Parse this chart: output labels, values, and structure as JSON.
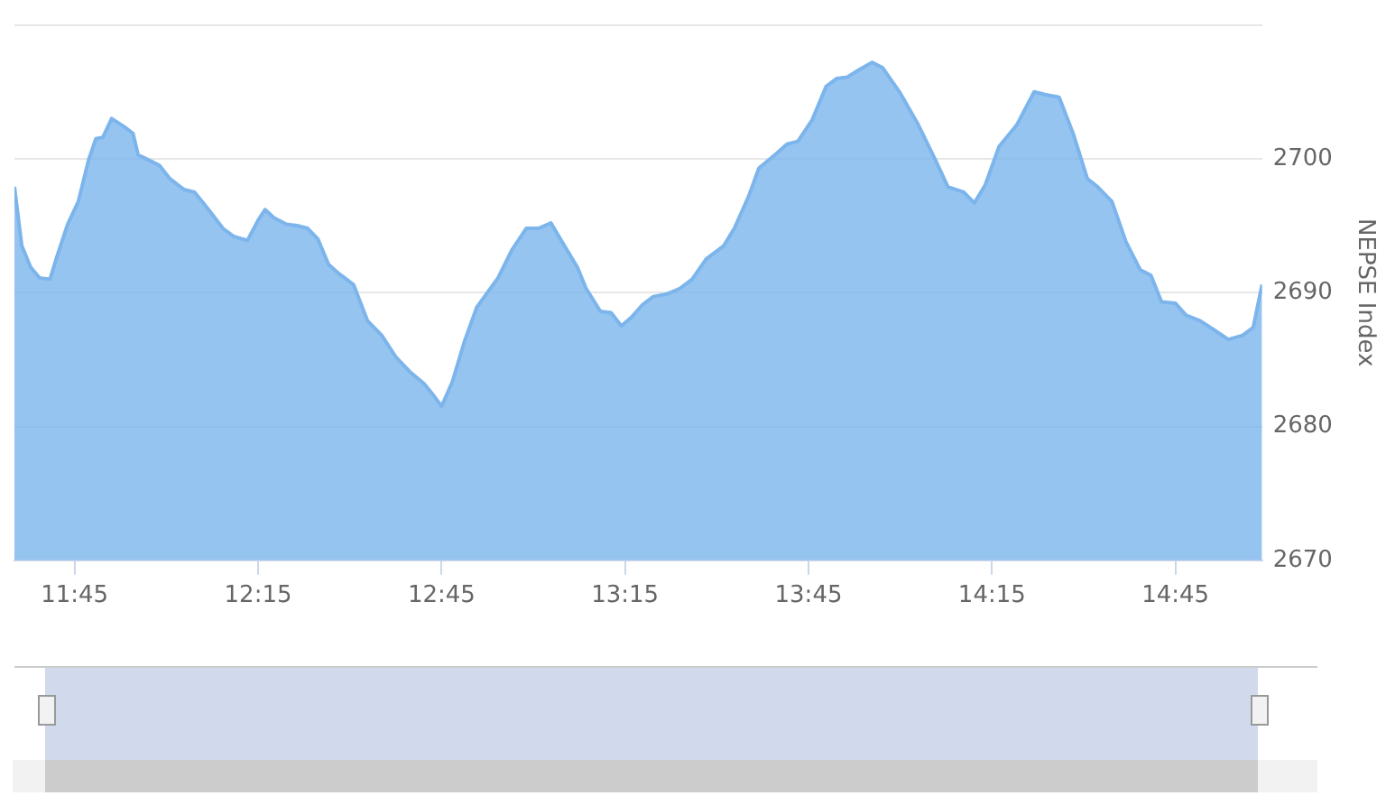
{
  "chart_data": {
    "type": "area",
    "ylabel": "NEPSE Index",
    "grid": "y",
    "legend": false,
    "marker": "none",
    "line_style": "solid",
    "xlim": [
      11.586,
      14.986
    ],
    "xticks": [
      {
        "value": 11.75,
        "label": "11:45"
      },
      {
        "value": 12.25,
        "label": "12:15"
      },
      {
        "value": 12.75,
        "label": "12:45"
      },
      {
        "value": 13.25,
        "label": "13:15"
      },
      {
        "value": 13.75,
        "label": "13:45"
      },
      {
        "value": 14.25,
        "label": "14:15"
      },
      {
        "value": 14.75,
        "label": "14:45"
      }
    ],
    "ylim": [
      2670,
      2710
    ],
    "yticks": [
      2670,
      2680,
      2690,
      2700,
      {
        "value": 2710,
        "label": null
      }
    ],
    "x": [
      11.586,
      11.606,
      11.63,
      11.654,
      11.683,
      11.702,
      11.731,
      11.76,
      11.788,
      11.808,
      11.827,
      11.851,
      11.885,
      11.909,
      11.923,
      11.952,
      11.981,
      12.01,
      12.048,
      12.077,
      12.115,
      12.154,
      12.183,
      12.221,
      12.25,
      12.269,
      12.293,
      12.327,
      12.356,
      12.385,
      12.413,
      12.442,
      12.471,
      12.51,
      12.548,
      12.587,
      12.625,
      12.663,
      12.702,
      12.726,
      12.75,
      12.779,
      12.813,
      12.846,
      12.875,
      12.904,
      12.942,
      12.981,
      13.014,
      13.048,
      13.087,
      13.12,
      13.144,
      13.183,
      13.212,
      13.24,
      13.269,
      13.298,
      13.327,
      13.365,
      13.399,
      13.433,
      13.471,
      13.519,
      13.548,
      13.587,
      13.615,
      13.663,
      13.692,
      13.721,
      13.76,
      13.798,
      13.827,
      13.856,
      13.885,
      13.923,
      13.952,
      14.0,
      14.048,
      14.096,
      14.13,
      14.173,
      14.202,
      14.231,
      14.269,
      14.317,
      14.365,
      14.394,
      14.433,
      14.471,
      14.51,
      14.538,
      14.577,
      14.615,
      14.654,
      14.683,
      14.712,
      14.75,
      14.779,
      14.817,
      14.856,
      14.894,
      14.933,
      14.962,
      14.986
    ],
    "series": [
      {
        "color": "#7cb5ec",
        "values": [
          2697.9,
          2693.5,
          2691.9,
          2691.1,
          2691.0,
          2692.7,
          2695.1,
          2696.8,
          2699.9,
          2701.5,
          2701.6,
          2703.0,
          2702.4,
          2701.9,
          2700.3,
          2699.9,
          2699.5,
          2698.5,
          2697.7,
          2697.5,
          2696.2,
          2694.8,
          2694.2,
          2693.9,
          2695.4,
          2696.2,
          2695.6,
          2695.1,
          2695.0,
          2694.8,
          2694.0,
          2692.1,
          2691.4,
          2690.6,
          2687.9,
          2686.8,
          2685.2,
          2684.1,
          2683.2,
          2682.4,
          2681.5,
          2683.3,
          2686.4,
          2688.9,
          2690.0,
          2691.1,
          2693.2,
          2694.8,
          2694.8,
          2695.2,
          2693.4,
          2691.9,
          2690.3,
          2688.6,
          2688.5,
          2687.5,
          2688.2,
          2689.1,
          2689.7,
          2689.9,
          2690.3,
          2691.0,
          2692.5,
          2693.5,
          2694.8,
          2697.2,
          2699.3,
          2700.4,
          2701.1,
          2701.3,
          2702.9,
          2705.4,
          2706.0,
          2706.1,
          2706.6,
          2707.2,
          2706.8,
          2704.9,
          2702.6,
          2699.9,
          2697.9,
          2697.5,
          2696.7,
          2698.0,
          2700.9,
          2702.5,
          2705.0,
          2704.8,
          2704.6,
          2701.9,
          2698.5,
          2697.9,
          2696.8,
          2693.8,
          2691.7,
          2691.3,
          2689.3,
          2689.2,
          2688.3,
          2687.9,
          2687.2,
          2686.5,
          2686.8,
          2687.4,
          2690.6
        ]
      }
    ]
  }
}
